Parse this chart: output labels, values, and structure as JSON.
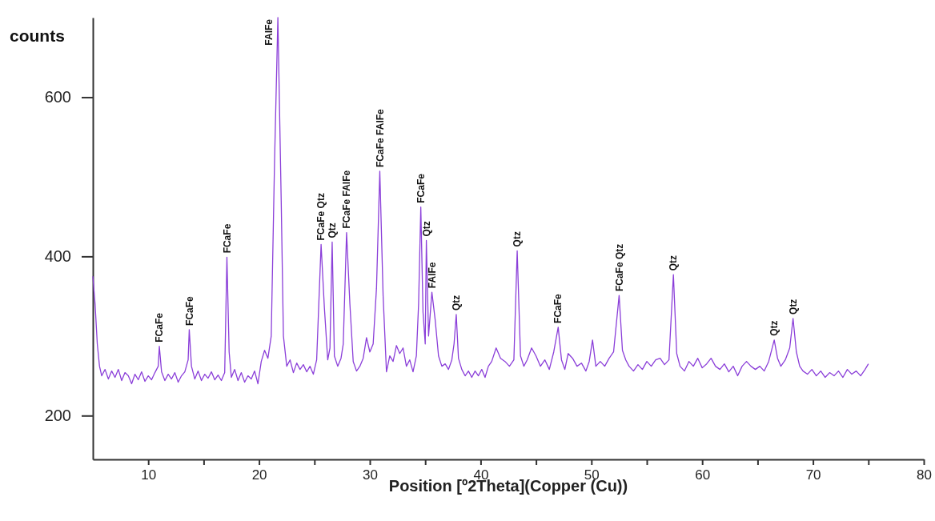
{
  "chart_data": {
    "type": "line",
    "xlabel": "Position [º2Theta](Copper (Cu))",
    "ylabel": "counts",
    "xlim": [
      5,
      80
    ],
    "ylim": [
      145,
      700
    ],
    "xticks": [
      10,
      {
        "value": 15,
        "label": null
      },
      20,
      {
        "value": 25,
        "label": null
      },
      30,
      {
        "value": 35,
        "label": null
      },
      40,
      {
        "value": 45,
        "label": null
      },
      50,
      {
        "value": 55,
        "label": null
      },
      60,
      {
        "value": 65,
        "label": null
      },
      70,
      {
        "value": 75,
        "label": null
      },
      80
    ],
    "yticks": [
      200,
      400,
      600
    ],
    "series": [
      {
        "color": "#8b3fd9",
        "x": [
          5.0,
          5.2,
          5.4,
          5.6,
          5.8,
          6.1,
          6.4,
          6.7,
          7.0,
          7.3,
          7.6,
          7.9,
          8.2,
          8.5,
          8.8,
          9.1,
          9.4,
          9.7,
          10.0,
          10.3,
          10.6,
          10.9,
          11.0,
          11.2,
          11.5,
          11.8,
          12.1,
          12.4,
          12.7,
          13.0,
          13.3,
          13.6,
          13.7,
          13.9,
          14.2,
          14.5,
          14.8,
          15.1,
          15.4,
          15.7,
          16.0,
          16.3,
          16.6,
          16.9,
          17.1,
          17.3,
          17.5,
          17.8,
          18.1,
          18.4,
          18.7,
          19.0,
          19.3,
          19.6,
          19.9,
          20.2,
          20.5,
          20.8,
          21.1,
          21.4,
          21.7,
          22.0,
          22.2,
          22.5,
          22.8,
          23.1,
          23.4,
          23.7,
          24.0,
          24.3,
          24.6,
          24.9,
          25.2,
          25.6,
          25.9,
          26.2,
          26.4,
          26.6,
          26.8,
          27.1,
          27.4,
          27.6,
          27.9,
          28.2,
          28.5,
          28.8,
          29.1,
          29.4,
          29.7,
          30.0,
          30.3,
          30.6,
          30.9,
          31.2,
          31.5,
          31.8,
          32.1,
          32.4,
          32.7,
          33.0,
          33.3,
          33.6,
          33.9,
          34.2,
          34.4,
          34.6,
          34.8,
          35.0,
          35.1,
          35.3,
          35.6,
          35.9,
          36.2,
          36.5,
          36.8,
          37.1,
          37.4,
          37.6,
          37.8,
          38.0,
          38.3,
          38.6,
          38.9,
          39.2,
          39.5,
          39.8,
          40.1,
          40.4,
          40.7,
          41.0,
          41.4,
          41.8,
          42.2,
          42.6,
          43.0,
          43.3,
          43.6,
          43.9,
          44.2,
          44.6,
          45.0,
          45.4,
          45.8,
          46.2,
          46.6,
          47.0,
          47.3,
          47.6,
          47.9,
          48.3,
          48.7,
          49.1,
          49.5,
          49.8,
          50.1,
          50.4,
          50.8,
          51.2,
          51.6,
          52.0,
          52.5,
          52.8,
          53.1,
          53.4,
          53.8,
          54.2,
          54.6,
          55.0,
          55.4,
          55.8,
          56.2,
          56.6,
          57.0,
          57.4,
          57.7,
          58.0,
          58.4,
          58.8,
          59.2,
          59.6,
          60.0,
          60.4,
          60.8,
          61.2,
          61.6,
          62.0,
          62.4,
          62.8,
          63.2,
          63.6,
          64.0,
          64.4,
          64.8,
          65.2,
          65.6,
          66.0,
          66.5,
          66.8,
          67.1,
          67.5,
          67.9,
          68.2,
          68.5,
          68.8,
          69.1,
          69.5,
          69.9,
          70.3,
          70.7,
          71.1,
          71.5,
          71.9,
          72.3,
          72.7,
          73.1,
          73.5,
          73.9,
          74.3,
          74.7,
          75.0
        ],
        "values": [
          375,
          340,
          290,
          262,
          250,
          258,
          246,
          256,
          248,
          258,
          244,
          254,
          250,
          240,
          252,
          245,
          255,
          243,
          250,
          245,
          254,
          262,
          287,
          255,
          244,
          252,
          246,
          254,
          242,
          250,
          255,
          270,
          308,
          262,
          246,
          256,
          244,
          252,
          247,
          255,
          245,
          251,
          244,
          254,
          399,
          280,
          248,
          258,
          244,
          254,
          242,
          250,
          246,
          256,
          240,
          268,
          282,
          272,
          300,
          520,
          700,
          470,
          300,
          262,
          270,
          254,
          266,
          258,
          264,
          255,
          262,
          252,
          270,
          415,
          335,
          270,
          285,
          418,
          275,
          262,
          272,
          290,
          430,
          340,
          268,
          256,
          262,
          272,
          298,
          280,
          290,
          360,
          507,
          350,
          255,
          275,
          268,
          288,
          278,
          285,
          262,
          270,
          255,
          275,
          340,
          462,
          330,
          290,
          420,
          300,
          355,
          320,
          275,
          262,
          265,
          258,
          270,
          290,
          327,
          272,
          258,
          250,
          256,
          248,
          256,
          250,
          258,
          248,
          262,
          268,
          285,
          272,
          268,
          262,
          270,
          407,
          275,
          262,
          270,
          285,
          275,
          262,
          270,
          258,
          280,
          311,
          270,
          258,
          278,
          272,
          262,
          266,
          256,
          268,
          295,
          262,
          268,
          262,
          272,
          280,
          351,
          282,
          270,
          262,
          256,
          264,
          258,
          268,
          262,
          270,
          272,
          264,
          270,
          377,
          278,
          262,
          256,
          268,
          262,
          272,
          260,
          265,
          272,
          262,
          258,
          265,
          255,
          262,
          250,
          262,
          268,
          262,
          258,
          262,
          256,
          268,
          295,
          272,
          262,
          270,
          285,
          322,
          280,
          262,
          256,
          252,
          258,
          250,
          256,
          248,
          254,
          250,
          256,
          248,
          258,
          252,
          256,
          250,
          258,
          265
        ]
      }
    ],
    "annotations": [
      {
        "text": "FCaFe",
        "x": 11.0,
        "y": 287
      },
      {
        "text": "FCaFe",
        "x": 13.7,
        "y": 308
      },
      {
        "text": "FCaFe",
        "x": 17.1,
        "y": 399
      },
      {
        "text": "FAlFe",
        "x": 21.7,
        "y": 700
      },
      {
        "text": "FCaFe Qtz",
        "x": 25.6,
        "y": 415
      },
      {
        "text": "Qtz",
        "x": 26.6,
        "y": 418
      },
      {
        "text": "FCaFe FAlFe",
        "x": 27.9,
        "y": 430
      },
      {
        "text": "FCaFe FAlFe",
        "x": 30.9,
        "y": 507
      },
      {
        "text": "FCaFe",
        "x": 34.6,
        "y": 462
      },
      {
        "text": "Qtz",
        "x": 35.1,
        "y": 420
      },
      {
        "text": "FAlFe",
        "x": 35.6,
        "y": 355
      },
      {
        "text": "Qtz",
        "x": 37.8,
        "y": 327
      },
      {
        "text": "Qtz",
        "x": 43.3,
        "y": 407
      },
      {
        "text": "FCaFe",
        "x": 47.0,
        "y": 311
      },
      {
        "text": "FCaFe Qtz",
        "x": 52.5,
        "y": 351
      },
      {
        "text": "Qtz",
        "x": 57.4,
        "y": 377
      },
      {
        "text": "Qtz",
        "x": 66.5,
        "y": 295
      },
      {
        "text": "Qtz",
        "x": 68.2,
        "y": 322
      }
    ]
  }
}
